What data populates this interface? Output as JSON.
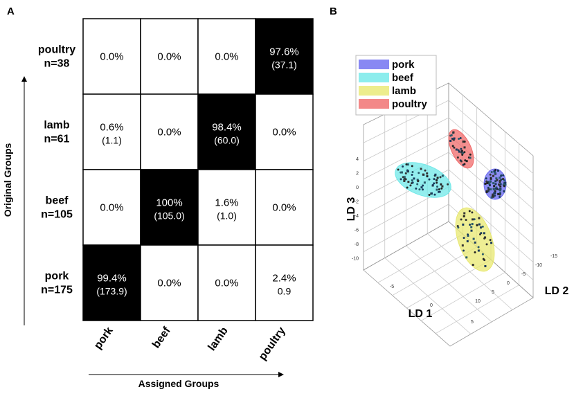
{
  "panels": {
    "a_label": "A",
    "b_label": "B"
  },
  "chart_data": [
    {
      "type": "heatmap",
      "title": "",
      "xlabel": "Assigned Groups",
      "ylabel": "Original Groups",
      "columns": [
        "pork",
        "beef",
        "lamb",
        "poultry"
      ],
      "rows": [
        {
          "name": "poultry",
          "n": "n=38",
          "cells": [
            {
              "pct": "0.0%",
              "count": "",
              "value": 0.0
            },
            {
              "pct": "0.0%",
              "count": "",
              "value": 0.0
            },
            {
              "pct": "0.0%",
              "count": "",
              "value": 0.0
            },
            {
              "pct": "97.6%",
              "count": "(37.1)",
              "value": 97.6
            }
          ]
        },
        {
          "name": "lamb",
          "n": "n=61",
          "cells": [
            {
              "pct": "0.6%",
              "count": "(1.1)",
              "value": 0.6
            },
            {
              "pct": "0.0%",
              "count": "",
              "value": 0.0
            },
            {
              "pct": "98.4%",
              "count": "(60.0)",
              "value": 98.4
            },
            {
              "pct": "0.0%",
              "count": "",
              "value": 0.0
            }
          ]
        },
        {
          "name": "beef",
          "n": "n=105",
          "cells": [
            {
              "pct": "0.0%",
              "count": "",
              "value": 0.0
            },
            {
              "pct": "100%",
              "count": "(105.0)",
              "value": 100.0
            },
            {
              "pct": "1.6%",
              "count": "(1.0)",
              "value": 1.6
            },
            {
              "pct": "0.0%",
              "count": "",
              "value": 0.0
            }
          ]
        },
        {
          "name": "pork",
          "n": "n=175",
          "cells": [
            {
              "pct": "99.4%",
              "count": "(173.9)",
              "value": 99.4
            },
            {
              "pct": "0.0%",
              "count": "",
              "value": 0.0
            },
            {
              "pct": "0.0%",
              "count": "",
              "value": 0.0
            },
            {
              "pct": "2.4%",
              "count": "0.9",
              "value": 2.4
            }
          ]
        }
      ]
    },
    {
      "type": "scatter",
      "title": "",
      "xlabel": "LD 1",
      "ylabel": "LD 2",
      "zlabel": "LD 3",
      "legend_position": "top-left",
      "x_ticks": [
        "-5",
        "0",
        "5"
      ],
      "y_ticks": [
        "-15",
        "-10",
        "-5",
        "0",
        "5",
        "10"
      ],
      "z_ticks": [
        "4",
        "2",
        "0",
        "-2",
        "-4",
        "-6",
        "-8",
        "-10"
      ],
      "grid": true,
      "series": [
        {
          "name": "pork",
          "color": "#6a6af0",
          "center": [
            0.5,
            0.3
          ]
        },
        {
          "name": "beef",
          "color": "#6fe8e8",
          "center": [
            -7,
            -12
          ]
        },
        {
          "name": "lamb",
          "color": "#e8e870",
          "center": [
            3,
            8
          ]
        },
        {
          "name": "poultry",
          "color": "#f06a6a",
          "center": [
            -6,
            0
          ]
        }
      ]
    }
  ]
}
